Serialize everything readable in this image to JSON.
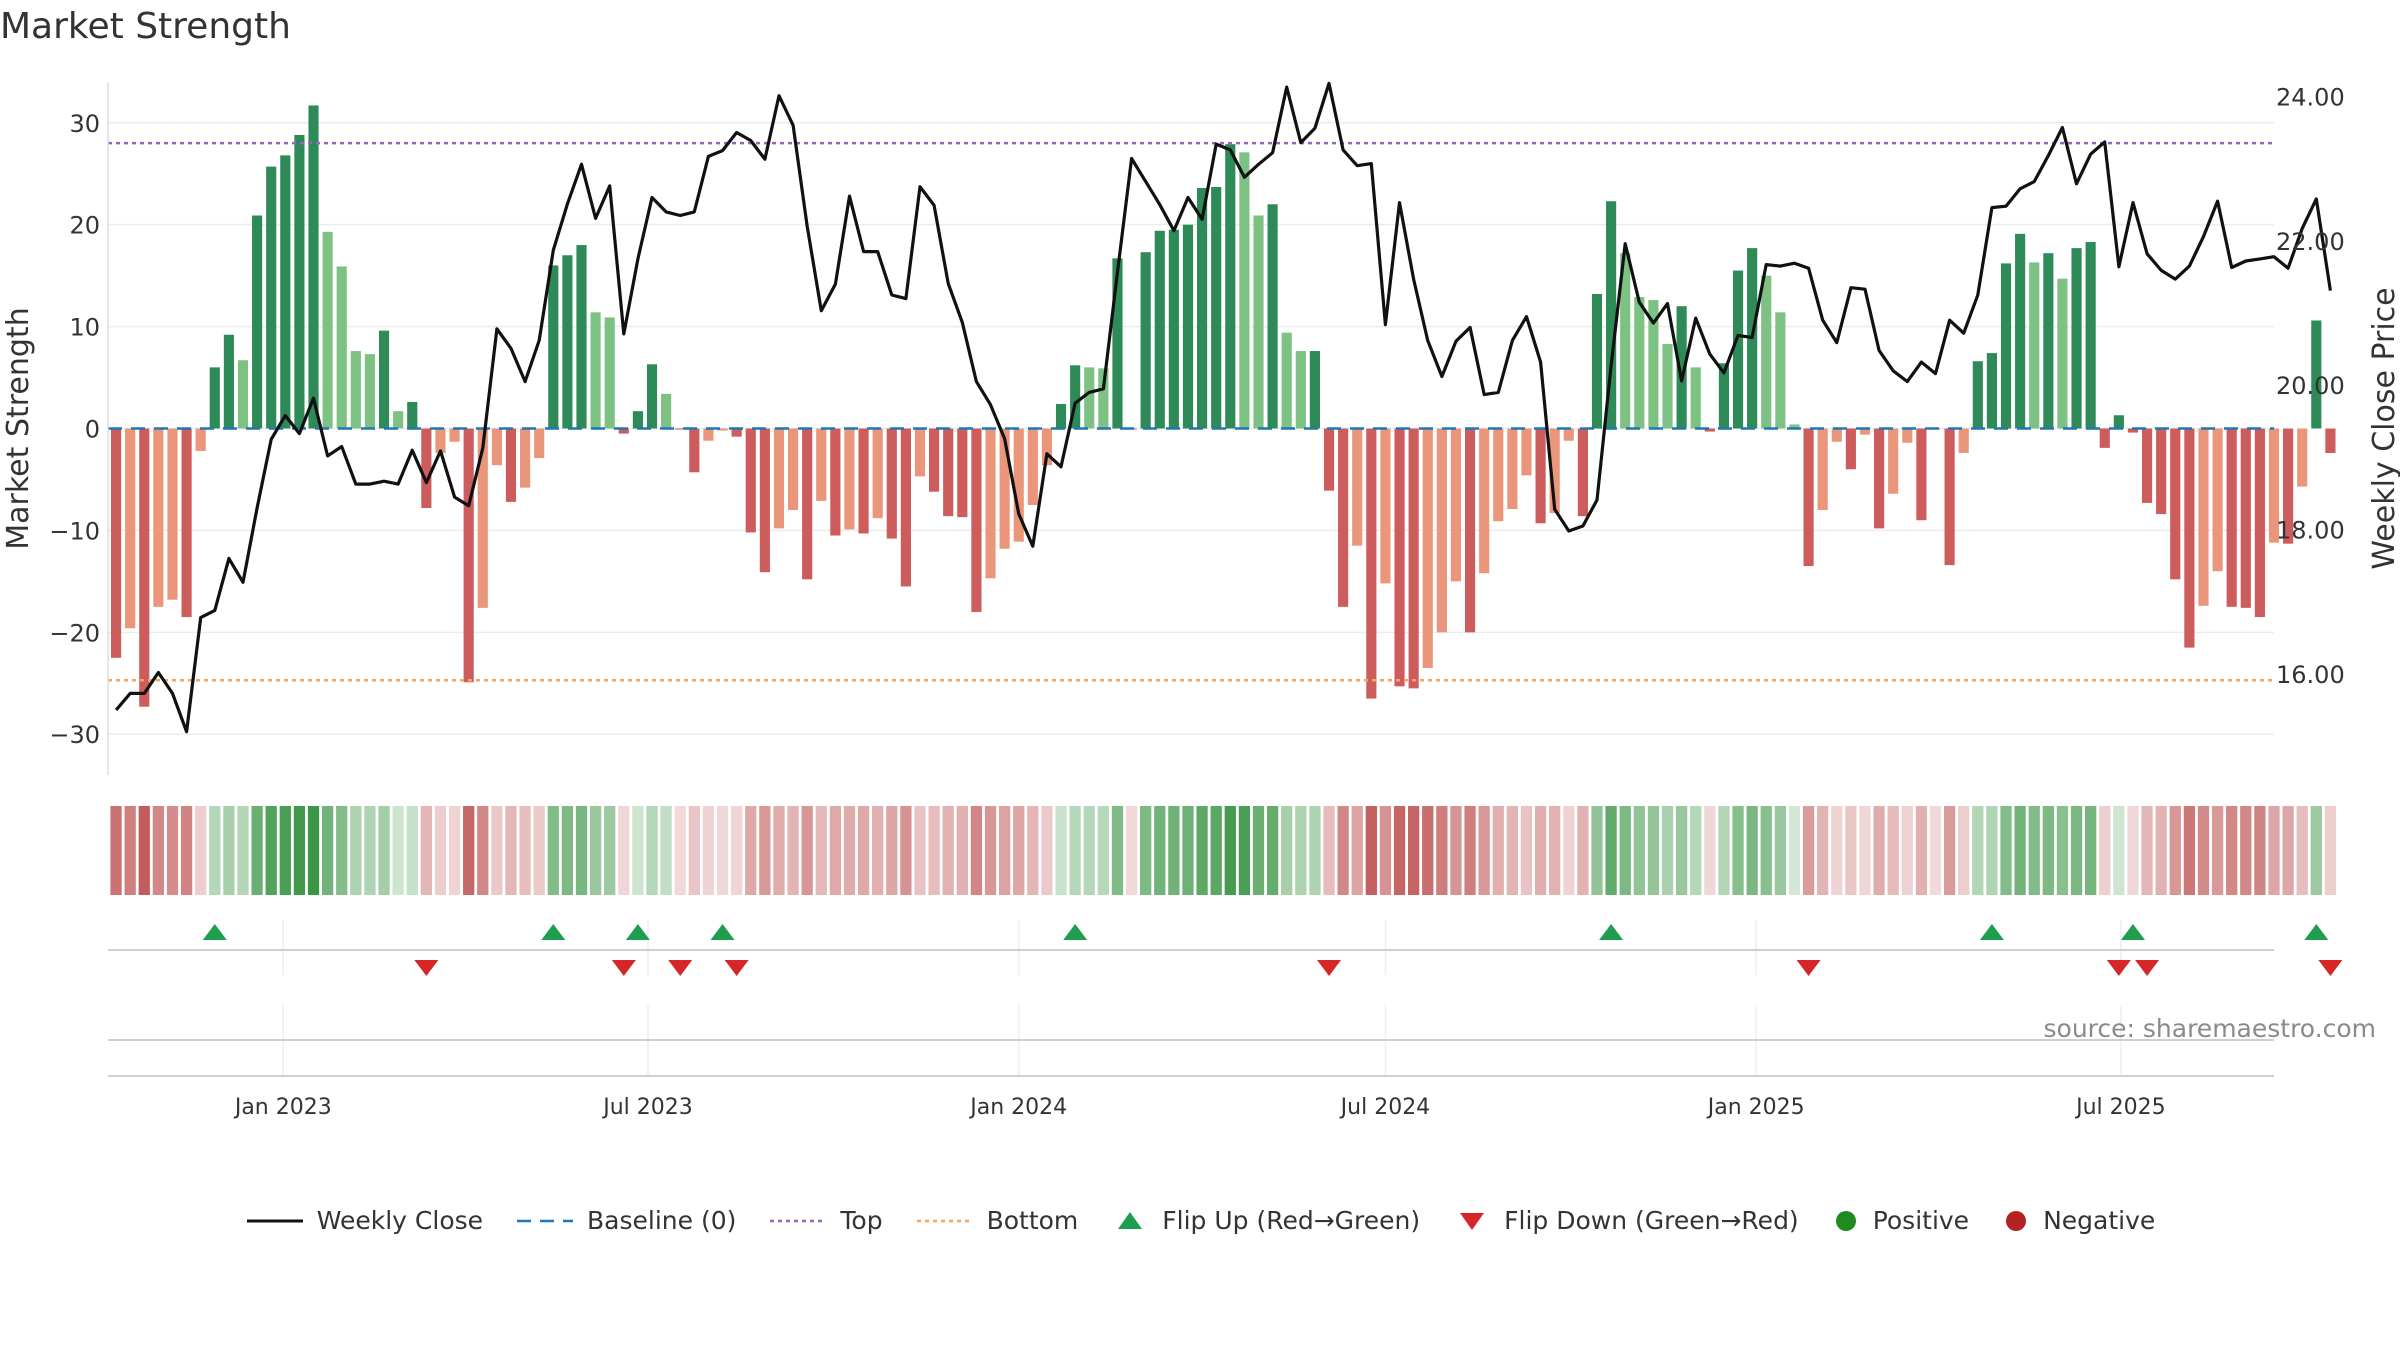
{
  "chart_data": {
    "type": "bar",
    "title": "Market Strength",
    "ylabel": "Market Strength",
    "y2label": "Weekly Close Price",
    "ylim": [
      -34,
      34
    ],
    "y2lim": [
      14.6,
      24.2
    ],
    "yticks": [
      30,
      20,
      10,
      0,
      -10,
      -20,
      -30
    ],
    "ytick_labels": [
      "30",
      "20",
      "10",
      "0",
      "−10",
      "−20",
      "−30"
    ],
    "y2ticks": [
      24,
      22,
      20,
      18,
      16
    ],
    "y2tick_labels": [
      "24.00",
      "22.00",
      "20.00",
      "18.00",
      "16.00"
    ],
    "x_start": "2022-10-10",
    "x_range": [
      "2022-10-06",
      "2025-09-15"
    ],
    "xticks": [
      "2023-01-01",
      "2023-07-01",
      "2024-01-01",
      "2024-07-01",
      "2025-01-01",
      "2025-07-01"
    ],
    "xtick_labels": [
      "Jan 2023",
      "Jul 2023",
      "Jan 2024",
      "Jul 2024",
      "Jan 2025",
      "Jul 2025"
    ],
    "top_line": 28,
    "bottom_line": -24.7,
    "baseline": 0,
    "strength": [
      -22.5,
      -19.6,
      -27.3,
      -17.5,
      -16.8,
      -18.5,
      -2.2,
      6,
      9.2,
      6.7,
      20.9,
      25.7,
      26.8,
      28.8,
      31.7,
      19.3,
      15.9,
      7.6,
      7.3,
      9.6,
      1.7,
      2.6,
      -7.8,
      -2.4,
      -1.3,
      -24.9,
      -17.6,
      -3.6,
      -7.2,
      -5.8,
      -2.9,
      16,
      17,
      18,
      11.4,
      10.9,
      -0.5,
      1.7,
      6.3,
      3.4,
      -0.1,
      -4.3,
      -1.2,
      -0.2,
      -0.8,
      -10.2,
      -14.1,
      -9.8,
      -8,
      -14.8,
      -7.1,
      -10.5,
      -9.9,
      -10.3,
      -8.8,
      -10.8,
      -15.5,
      -4.7,
      -6.2,
      -8.6,
      -8.7,
      -18,
      -14.7,
      -11.8,
      -11.1,
      -7.5,
      -3.6,
      2.4,
      6.2,
      6,
      5.9,
      16.7,
      -0.1,
      17.3,
      19.4,
      19.5,
      20,
      23.6,
      23.7,
      27.9,
      27.1,
      20.9,
      22,
      9.4,
      7.6,
      7.6,
      -6.1,
      -17.5,
      -11.5,
      -26.5,
      -15.2,
      -25.3,
      -25.5,
      -23.5,
      -20,
      -15,
      -20,
      -14.2,
      -9.1,
      -7.9,
      -4.6,
      -9.3,
      -8.3,
      -1.2,
      -8.6,
      13.2,
      22.3,
      17.2,
      12.9,
      12.6,
      8.3,
      12,
      6,
      -0.3,
      6.4,
      15.5,
      17.7,
      15,
      11.4,
      0.4,
      -13.5,
      -8,
      -1.3,
      -4,
      -0.6,
      -9.8,
      -6.4,
      -1.4,
      -9,
      -0.1,
      -13.4,
      -2.4,
      6.6,
      7.4,
      16.2,
      19.1,
      16.3,
      17.2,
      14.7,
      17.7,
      18.3,
      -1.9,
      1.3,
      -0.4,
      -7.3,
      -8.4,
      -14.8,
      -21.5,
      -17.4,
      -14,
      -17.5,
      -17.6,
      -18.5,
      -11.2,
      -11.3,
      -5.7,
      10.6,
      -2.4
    ],
    "price": [
      15.5,
      15.73,
      15.73,
      16.02,
      15.73,
      15.2,
      16.78,
      16.88,
      17.6,
      17.27,
      18.3,
      19.25,
      19.58,
      19.33,
      19.82,
      19.02,
      19.15,
      18.63,
      18.63,
      18.67,
      18.63,
      19.1,
      18.65,
      19.09,
      18.45,
      18.33,
      19.13,
      20.78,
      20.51,
      20.05,
      20.62,
      21.87,
      22.51,
      23.06,
      22.31,
      22.76,
      20.71,
      21.75,
      22.6,
      22.4,
      22.35,
      22.4,
      23.17,
      23.25,
      23.5,
      23.39,
      23.13,
      24.01,
      23.6,
      22.2,
      21.03,
      21.4,
      22.62,
      21.85,
      21.85,
      21.25,
      21.2,
      22.75,
      22.49,
      21.41,
      20.87,
      20.05,
      19.73,
      19.26,
      18.22,
      17.77,
      19.05,
      18.87,
      19.75,
      19.9,
      19.95,
      21.57,
      23.14,
      22.82,
      22.5,
      22.14,
      22.6,
      22.3,
      23.34,
      23.26,
      22.88,
      23.06,
      23.22,
      24.13,
      23.36,
      23.56,
      24.18,
      23.26,
      23.04,
      23.07,
      20.84,
      22.53,
      21.47,
      20.62,
      20.12,
      20.61,
      20.8,
      19.87,
      19.9,
      20.62,
      20.95,
      20.32,
      18.28,
      17.98,
      18.05,
      18.41,
      20.27,
      21.96,
      21.15,
      20.86,
      21.13,
      20.06,
      20.93,
      20.43,
      20.17,
      20.69,
      20.66,
      21.67,
      21.65,
      21.69,
      21.62,
      20.9,
      20.59,
      21.35,
      21.33,
      20.48,
      20.2,
      20.05,
      20.32,
      20.16,
      20.9,
      20.72,
      21.25,
      22.46,
      22.48,
      22.72,
      22.82,
      23.18,
      23.57,
      22.79,
      23.2,
      23.37,
      21.64,
      22.53,
      21.82,
      21.59,
      21.47,
      21.65,
      22.06,
      22.55,
      21.63,
      21.72,
      21.75,
      21.78,
      21.62,
      22.17,
      22.58,
      21.31
    ],
    "flips_up": [
      7,
      31,
      37,
      43,
      68,
      106,
      133,
      143,
      156
    ],
    "flips_down": [
      22,
      36,
      40,
      44,
      86,
      120,
      142,
      144,
      157
    ],
    "source_text": "source: sharemaestro.com",
    "legend": [
      "Weekly Close",
      "Baseline (0)",
      "Top",
      "Bottom",
      "Flip Up (Red→Green)",
      "Flip Down (Green→Red)",
      "Positive",
      "Negative"
    ],
    "colors": {
      "pos_strong": "#2e8b57",
      "pos_weak": "#7dc283",
      "neg_strong": "#cd5c5c",
      "neg_weak": "#e9967a",
      "price": "#111111",
      "baseline": "#1f77b4",
      "top": "#9467bd",
      "bottom": "#f4a460",
      "flip_up": "#1e9e4e",
      "flip_down": "#d62728",
      "positive": "#1f8a1f",
      "negative": "#b22222"
    }
  }
}
